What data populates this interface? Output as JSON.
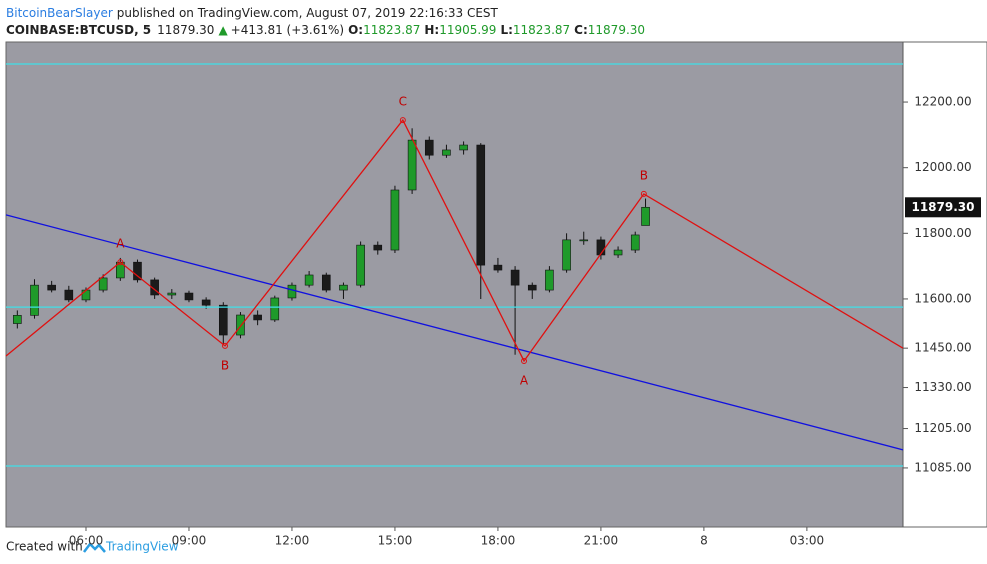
{
  "header": {
    "author": "BitcoinBearSlayer",
    "published": "published on TradingView.com, August 07, 2019 22:16:33 CEST",
    "symbol": "COINBASE:BTCUSD, 5",
    "last": "11879.30",
    "change": "+413.81 (+3.61%)",
    "o_label": "O:",
    "o": "11823.87",
    "h_label": "H:",
    "h": "11905.99",
    "l_label": "L:",
    "l": "11823.87",
    "c_label": "C:",
    "c": "11879.30"
  },
  "footer": {
    "created": "Created with",
    "brand": "TradingView"
  },
  "chart_data": {
    "type": "candlestick",
    "up_color": "#1f9a2a",
    "down_color": "#1b1b1b",
    "x": [
      4.0,
      4.5,
      5.0,
      5.5,
      6.0,
      6.5,
      7.0,
      7.5,
      8.0,
      8.5,
      9.0,
      9.5,
      10.0,
      10.5,
      11.0,
      11.5,
      12.0,
      12.5,
      13.0,
      13.5,
      14.0,
      14.5,
      15.0,
      15.5,
      16.0,
      16.5,
      17.0,
      17.5,
      18.0,
      18.5,
      19.0,
      19.5,
      20.0,
      20.5,
      21.0,
      21.5,
      22.0,
      22.3
    ],
    "open": [
      11525,
      11550,
      11642,
      11627,
      11597,
      11627,
      11664,
      11712,
      11658,
      11612,
      11618,
      11597,
      11581,
      11490,
      11551,
      11536,
      11603,
      11642,
      11673,
      11627,
      11642,
      11764,
      11749,
      11932,
      12084,
      12038,
      12054,
      12069,
      11703,
      11688,
      11642,
      11627,
      11688,
      11780,
      11780,
      11734,
      11749,
      11823.87
    ],
    "high": [
      11565,
      11660,
      11655,
      11640,
      11635,
      11675,
      11725,
      11720,
      11665,
      11630,
      11625,
      11605,
      11590,
      11560,
      11565,
      11610,
      11650,
      11685,
      11680,
      11650,
      11775,
      11775,
      11945,
      12120,
      12095,
      12070,
      12080,
      12075,
      11725,
      11700,
      11650,
      11700,
      11800,
      11805,
      11790,
      11760,
      11805,
      11905.99
    ],
    "low": [
      11510,
      11540,
      11620,
      11590,
      11590,
      11620,
      11655,
      11650,
      11600,
      11600,
      11590,
      11570,
      11460,
      11480,
      11520,
      11530,
      11595,
      11635,
      11620,
      11600,
      11635,
      11735,
      11740,
      11920,
      12025,
      12030,
      12040,
      11600,
      11680,
      11430,
      11600,
      11620,
      11680,
      11765,
      11720,
      11725,
      11740,
      11823.87
    ],
    "close": [
      11550,
      11642,
      11627,
      11597,
      11627,
      11664,
      11712,
      11658,
      11612,
      11618,
      11597,
      11581,
      11490,
      11551,
      11536,
      11603,
      11642,
      11673,
      11627,
      11642,
      11764,
      11749,
      11932,
      12084,
      12038,
      12054,
      12069,
      11703,
      11688,
      11642,
      11627,
      11688,
      11780,
      11780,
      11734,
      11749,
      11795,
      11879.3
    ],
    "price_label": "11879.30",
    "last_price": 11879.3,
    "xlim": [
      3.67,
      29.8
    ],
    "ylim": [
      10905,
      12383
    ],
    "xticks": [
      {
        "value": 6,
        "label": "06:00"
      },
      {
        "value": 9,
        "label": "09:00"
      },
      {
        "value": 12,
        "label": "12:00"
      },
      {
        "value": 15,
        "label": "15:00"
      },
      {
        "value": 18,
        "label": "18:00"
      },
      {
        "value": 21,
        "label": "21:00"
      },
      {
        "value": 24,
        "label": "8"
      },
      {
        "value": 27,
        "label": "03:00"
      }
    ],
    "yticks": [
      {
        "value": 12200,
        "label": "12200.00"
      },
      {
        "value": 12000,
        "label": "12000.00"
      },
      {
        "value": 11800,
        "label": "11800.00"
      },
      {
        "value": 11600,
        "label": "11600.00"
      },
      {
        "value": 11450,
        "label": "11450.00"
      },
      {
        "value": 11330,
        "label": "11330.00"
      },
      {
        "value": 11205,
        "label": "11205.00"
      },
      {
        "value": 11085,
        "label": "11085.00"
      }
    ],
    "hlines": {
      "color": "#3fe0e8",
      "values": [
        12316,
        11575,
        11091
      ]
    },
    "trendline": {
      "color": "#1010e0",
      "x": [
        3.67,
        29.8
      ],
      "y": [
        11856,
        11140
      ]
    },
    "zigzag": {
      "color": "#e01010",
      "x": [
        3.67,
        7.0,
        10.05,
        15.23,
        18.76,
        22.25,
        29.8
      ],
      "y": [
        11426,
        11712,
        11457,
        12145,
        11411,
        11920,
        11450
      ],
      "labels": [
        null,
        "A",
        "B",
        "C",
        "A",
        "B",
        null
      ]
    }
  }
}
